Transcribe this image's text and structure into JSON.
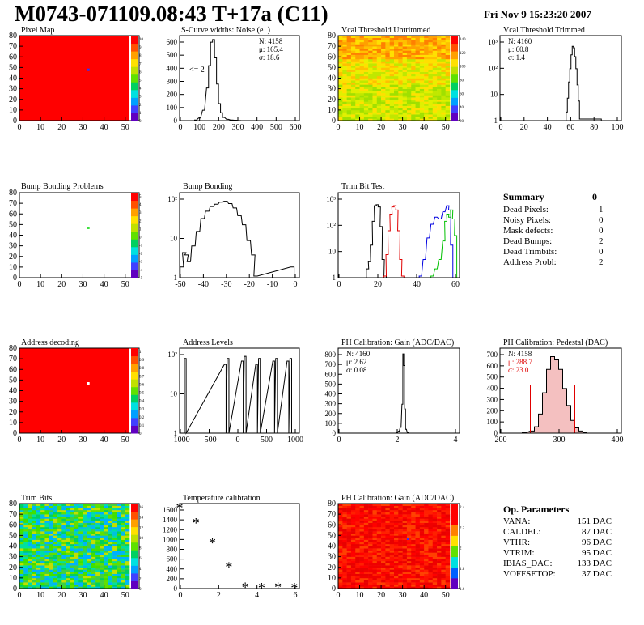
{
  "header": {
    "title": "M0743-071109.08:43 T+17a (C11)",
    "date": "Fri Nov  9 15:23:20 2007"
  },
  "panels": [
    {
      "id": "pixel_map",
      "title": "Pixel Map",
      "type": "heatmap",
      "x_ticks": [
        "0",
        "10",
        "20",
        "30",
        "40",
        "50"
      ],
      "y_ticks": [
        "0",
        "10",
        "20",
        "30",
        "40",
        "50",
        "60",
        "70",
        "80"
      ],
      "palette_ticks": [
        "0",
        "1",
        "2",
        "3",
        "4",
        "5",
        "6",
        "7",
        "8",
        "9",
        "10"
      ]
    },
    {
      "id": "scurve",
      "title": "S-Curve widths: Noise (e⁻)",
      "type": "histogram",
      "x_ticks": [
        "0",
        "100",
        "200",
        "300",
        "400",
        "500",
        "600"
      ],
      "y_ticks": [
        "0",
        "100",
        "200",
        "300",
        "400",
        "500",
        "600"
      ],
      "stats": [
        "N: 4158",
        "μ: 165.4",
        "σ: 18.6"
      ],
      "note": "<= 2"
    },
    {
      "id": "vcal_untrimmed",
      "title": "Vcal Threshold Untrimmed",
      "type": "heatmap",
      "x_ticks": [
        "0",
        "10",
        "20",
        "30",
        "40",
        "50"
      ],
      "y_ticks": [
        "0",
        "10",
        "20",
        "30",
        "40",
        "50",
        "60",
        "70",
        "80"
      ],
      "palette_ticks": [
        "20",
        "40",
        "60",
        "80",
        "100",
        "120",
        "140"
      ]
    },
    {
      "id": "vcal_trimmed",
      "title": "Vcal Threshold Trimmed",
      "type": "histogram",
      "x_ticks": [
        "0",
        "20",
        "40",
        "60",
        "80",
        "100"
      ],
      "y_ticks": [
        "1",
        "10",
        "10²",
        "10³"
      ],
      "stats": [
        "N: 4160",
        "μ: 60.8",
        "σ:  1.4"
      ]
    },
    {
      "id": "bump_problems",
      "title": "Bump Bonding Problems",
      "type": "heatmap",
      "x_ticks": [
        "0",
        "10",
        "20",
        "30",
        "40",
        "50"
      ],
      "y_ticks": [
        "0",
        "10",
        "20",
        "30",
        "40",
        "50",
        "60",
        "70",
        "80"
      ],
      "palette_ticks": [
        "-5",
        "-4",
        "-3",
        "-2",
        "-1",
        "0",
        "1",
        "2",
        "3",
        "4",
        "5"
      ]
    },
    {
      "id": "bump_bonding",
      "title": "Bump Bonding",
      "type": "histogram",
      "x_ticks": [
        "-50",
        "-40",
        "-30",
        "-20",
        "-10",
        "0"
      ],
      "y_ticks": [
        "1",
        "10",
        "10²"
      ]
    },
    {
      "id": "trim_bit",
      "title": "Trim Bit Test",
      "type": "histogram",
      "x_ticks": [
        "0",
        "20",
        "40",
        "60"
      ],
      "y_ticks": [
        "1",
        "10",
        "10²",
        "10³"
      ]
    },
    {
      "id": "address_decoding",
      "title": "Address decoding",
      "type": "heatmap",
      "x_ticks": [
        "0",
        "10",
        "20",
        "30",
        "40",
        "50"
      ],
      "y_ticks": [
        "0",
        "10",
        "20",
        "30",
        "40",
        "50",
        "60",
        "70",
        "80"
      ],
      "palette_ticks": [
        "0",
        "0.1",
        "0.2",
        "0.3",
        "0.4",
        "0.5",
        "0.6",
        "0.7",
        "0.8",
        "0.9",
        "1"
      ]
    },
    {
      "id": "address_levels",
      "title": "Address Levels",
      "type": "histogram",
      "x_ticks": [
        "-1000",
        "-500",
        "0",
        "500",
        "1000"
      ],
      "y_ticks": [
        "1",
        "10",
        "10²"
      ]
    },
    {
      "id": "ph_gain",
      "title": "PH Calibration: Gain (ADC/DAC)",
      "type": "histogram",
      "x_ticks": [
        "0",
        "2",
        "4"
      ],
      "y_ticks": [
        "0",
        "100",
        "200",
        "300",
        "400",
        "500",
        "600",
        "700",
        "800"
      ],
      "stats": [
        "N: 4160",
        "μ: 2.62",
        "σ: 0.08"
      ]
    },
    {
      "id": "ph_pedestal",
      "title": "PH Calibration: Pedestal (DAC)",
      "type": "histogram",
      "x_ticks": [
        "200",
        "300",
        "400"
      ],
      "y_ticks": [
        "0",
        "100",
        "200",
        "300",
        "400",
        "500",
        "600",
        "700"
      ],
      "stats": [
        "N: 4158",
        "μ: 288.7",
        "σ: 23.0"
      ]
    },
    {
      "id": "trim_bits",
      "title": "Trim Bits",
      "type": "heatmap",
      "x_ticks": [
        "0",
        "10",
        "20",
        "30",
        "40",
        "50"
      ],
      "y_ticks": [
        "0",
        "10",
        "20",
        "30",
        "40",
        "50",
        "60",
        "70",
        "80"
      ],
      "palette_ticks": [
        "0",
        "2",
        "4",
        "6",
        "8",
        "10",
        "12",
        "14",
        "16"
      ]
    },
    {
      "id": "temperature",
      "title": "Temperature calibration",
      "type": "scatter",
      "x_ticks": [
        "0",
        "2",
        "4",
        "6"
      ],
      "y_ticks": [
        "0",
        "200",
        "400",
        "600",
        "800",
        "1000",
        "1200",
        "1400",
        "1600"
      ]
    },
    {
      "id": "ph_gain_map",
      "title": "PH Calibration: Gain (ADC/DAC)",
      "type": "heatmap",
      "x_ticks": [
        "0",
        "10",
        "20",
        "30",
        "40",
        "50"
      ],
      "y_ticks": [
        "0",
        "10",
        "20",
        "30",
        "40",
        "50",
        "60",
        "70",
        "80"
      ],
      "palette_ticks": [
        "1.6",
        "1.8",
        "2",
        "2.2",
        "2.4"
      ]
    }
  ],
  "summary": {
    "title": "Summary",
    "title_value": "0",
    "rows": [
      {
        "label": "Dead Pixels:",
        "value": "1"
      },
      {
        "label": "Noisy Pixels:",
        "value": "0"
      },
      {
        "label": "Mask defects:",
        "value": "0"
      },
      {
        "label": "Dead Bumps:",
        "value": "2"
      },
      {
        "label": "Dead Trimbits:",
        "value": "0"
      },
      {
        "label": "Address Probl:",
        "value": "2"
      }
    ]
  },
  "op_params": {
    "title": "Op. Parameters",
    "rows": [
      {
        "label": "VANA:",
        "value": "151 DAC"
      },
      {
        "label": "CALDEL:",
        "value": "87 DAC"
      },
      {
        "label": "VTHR:",
        "value": "96 DAC"
      },
      {
        "label": "VTRIM:",
        "value": "95 DAC"
      },
      {
        "label": "IBIAS_DAC:",
        "value": "133 DAC"
      },
      {
        "label": "VOFFSETOP:",
        "value": "37 DAC"
      }
    ]
  },
  "chart_data": [
    {
      "type": "heatmap",
      "title": "Pixel Map",
      "cols": 52,
      "rows": 80,
      "fill": "#ff0000",
      "special": [
        {
          "col": 32,
          "row": 47,
          "color": "#3030ff"
        }
      ],
      "zlim": [
        0,
        10
      ]
    },
    {
      "type": "bar",
      "title": "S-Curve widths: Noise (e⁻)",
      "xlim": [
        0,
        600
      ],
      "ylim": [
        0,
        650
      ],
      "x": [
        80,
        100,
        120,
        140,
        150,
        160,
        170,
        180,
        190,
        200,
        210,
        220,
        240,
        260,
        280,
        300
      ],
      "values": [
        5,
        20,
        80,
        250,
        420,
        600,
        620,
        480,
        280,
        130,
        60,
        25,
        10,
        5,
        3,
        1
      ]
    },
    {
      "type": "heatmap",
      "title": "Vcal Threshold Untrimmed",
      "cols": 52,
      "rows": 80,
      "zlim": [
        0,
        150
      ],
      "gradient": "orange-top/yellow-green-bottom"
    },
    {
      "type": "bar",
      "title": "Vcal Threshold Trimmed",
      "xlim": [
        0,
        100
      ],
      "log_y": true,
      "x": [
        55,
        56,
        57,
        58,
        59,
        60,
        61,
        62,
        63,
        64,
        65,
        66,
        83
      ],
      "values": [
        2,
        8,
        40,
        150,
        600,
        1400,
        1200,
        500,
        150,
        30,
        6,
        1,
        1
      ]
    },
    {
      "type": "heatmap",
      "title": "Bump Bonding Problems",
      "cols": 52,
      "rows": 80,
      "fill": "#ffffff",
      "special": [
        {
          "col": 32,
          "row": 46,
          "color": "#40e040"
        }
      ],
      "zlim": [
        -5,
        5
      ]
    },
    {
      "type": "bar",
      "title": "Bump Bonding",
      "xlim": [
        -50,
        2
      ],
      "log_y": true,
      "x": [
        -49,
        -48,
        -47,
        -46,
        -44,
        -42,
        -40,
        -38,
        -36,
        -34,
        -32,
        -30,
        -28,
        -26,
        -24,
        -22,
        -20,
        -18,
        -17,
        -1
      ],
      "values": [
        2,
        6,
        5,
        3,
        10,
        30,
        80,
        140,
        200,
        240,
        280,
        300,
        250,
        180,
        100,
        50,
        15,
        5,
        1,
        2
      ]
    },
    {
      "type": "line",
      "title": "Trim Bit Test",
      "xlim": [
        0,
        62
      ],
      "log_y": true,
      "series": [
        {
          "name": "",
          "color": "#000000",
          "x": [
            15,
            16,
            17,
            18,
            19,
            20,
            21,
            22,
            23,
            24
          ],
          "values": [
            2,
            4,
            20,
            200,
            900,
            1000,
            800,
            120,
            5,
            1
          ]
        },
        {
          "name": "",
          "color": "#e00000",
          "x": [
            24,
            25,
            26,
            27,
            28,
            29,
            30,
            31,
            32,
            33
          ],
          "values": [
            1,
            8,
            80,
            400,
            800,
            900,
            600,
            80,
            5,
            1
          ]
        },
        {
          "name": "",
          "color": "#0000e0",
          "x": [
            42,
            44,
            46,
            48,
            50,
            52,
            54,
            56,
            57,
            58
          ],
          "values": [
            1,
            5,
            40,
            150,
            300,
            250,
            500,
            900,
            600,
            20
          ]
        },
        {
          "name": "",
          "color": "#00c000",
          "x": [
            48,
            50,
            52,
            54,
            55,
            56,
            57,
            58,
            59,
            60
          ],
          "values": [
            1,
            2,
            5,
            30,
            200,
            400,
            300,
            600,
            250,
            50
          ]
        }
      ]
    },
    {
      "type": "heatmap",
      "title": "Address decoding",
      "cols": 52,
      "rows": 80,
      "fill": "#ff0000",
      "special": [
        {
          "col": 32,
          "row": 46,
          "color": "#ffffff"
        }
      ],
      "zlim": [
        0,
        1
      ]
    },
    {
      "type": "bar",
      "title": "Address Levels",
      "xlim": [
        -1050,
        1050
      ],
      "log_y": true,
      "x": [
        -950,
        -250,
        -200,
        50,
        100,
        300,
        350,
        600,
        650,
        850,
        900
      ],
      "values": [
        500,
        300,
        500,
        400,
        600,
        300,
        500,
        400,
        500,
        400,
        500
      ]
    },
    {
      "type": "bar",
      "title": "PH Calibration: Gain (ADC/DAC)",
      "xlim": [
        -1,
        5.8
      ],
      "ylim": [
        0,
        880
      ],
      "x": [
        2.3,
        2.4,
        2.5,
        2.6,
        2.65,
        2.7,
        2.75,
        2.8,
        2.9
      ],
      "values": [
        5,
        20,
        60,
        300,
        820,
        700,
        250,
        40,
        5
      ]
    },
    {
      "type": "bar",
      "title": "PH Calibration: Pedestal (DAC)",
      "xlim": [
        160,
        460
      ],
      "ylim": [
        0,
        800
      ],
      "x": [
        220,
        240,
        250,
        260,
        270,
        280,
        290,
        300,
        310,
        320,
        330,
        340,
        350,
        360,
        370
      ],
      "values": [
        5,
        20,
        60,
        180,
        380,
        600,
        720,
        690,
        600,
        420,
        260,
        120,
        50,
        20,
        5
      ]
    },
    {
      "type": "heatmap",
      "title": "Trim Bits",
      "cols": 52,
      "rows": 80,
      "zlim": [
        0,
        16
      ],
      "gradient": "green/cyan noisy"
    },
    {
      "type": "scatter",
      "title": "Temperature calibration",
      "xlim": [
        0,
        7.3
      ],
      "ylim": [
        0,
        1650
      ],
      "x": [
        0,
        1,
        2,
        3,
        4,
        5,
        6,
        7
      ],
      "values": [
        1560,
        1270,
        890,
        420,
        20,
        15,
        20,
        15
      ]
    },
    {
      "type": "heatmap",
      "title": "PH Calibration: Gain (ADC/DAC)",
      "cols": 52,
      "rows": 80,
      "zlim": [
        1.4,
        2.6
      ],
      "gradient": "red noisy",
      "special": [
        {
          "col": 32,
          "row": 46,
          "color": "#3030ff"
        }
      ]
    }
  ]
}
